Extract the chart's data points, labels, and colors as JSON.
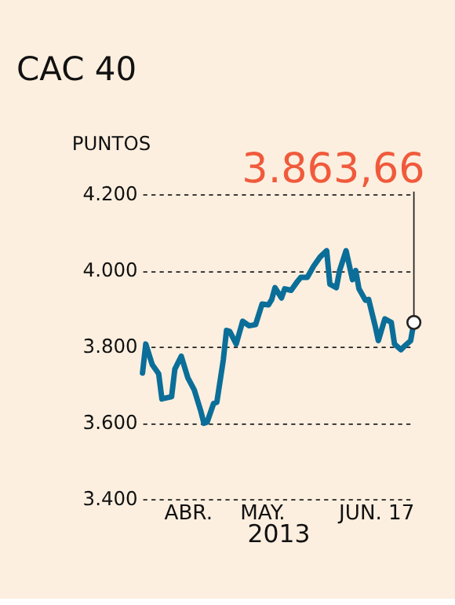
{
  "chart_data": {
    "type": "line",
    "title": "CAC 40",
    "ylabel": "PUNTOS",
    "xlabel": "2013",
    "x": [
      "2013-03-25",
      "2013-03-26",
      "2013-03-28",
      "2013-03-30",
      "2013-03-31",
      "2013-04-03",
      "2013-04-04",
      "2013-04-06",
      "2013-04-08",
      "2013-04-10",
      "2013-04-12",
      "2013-04-13",
      "2013-04-14",
      "2013-04-16",
      "2013-04-17",
      "2013-04-19",
      "2013-04-20",
      "2013-04-21",
      "2013-04-23",
      "2013-04-25",
      "2013-04-27",
      "2013-04-29",
      "2013-05-01",
      "2013-05-03",
      "2013-05-04",
      "2013-05-05",
      "2013-05-07",
      "2013-05-08",
      "2013-05-10",
      "2013-05-12",
      "2013-05-13",
      "2013-05-15",
      "2013-05-17",
      "2013-05-19",
      "2013-05-21",
      "2013-05-22",
      "2013-05-24",
      "2013-05-25",
      "2013-05-27",
      "2013-05-29",
      "2013-05-30",
      "2013-05-31",
      "2013-06-02",
      "2013-06-03",
      "2013-06-05",
      "2013-06-06",
      "2013-06-08",
      "2013-06-10",
      "2013-06-11",
      "2013-06-13",
      "2013-06-14",
      "2013-06-16",
      "2013-06-17"
    ],
    "series": [
      {
        "color": "#0b6e99",
        "values": [
          3731,
          3807,
          3753,
          3729,
          3663,
          3669,
          3741,
          3775,
          3719,
          3687,
          3632,
          3599,
          3602,
          3651,
          3654,
          3765,
          3843,
          3840,
          3807,
          3867,
          3855,
          3858,
          3912,
          3910,
          3924,
          3955,
          3928,
          3952,
          3948,
          3972,
          3982,
          3982,
          4012,
          4036,
          4052,
          3964,
          3955,
          4000,
          4052,
          3976,
          4000,
          3952,
          3922,
          3924,
          3855,
          3816,
          3873,
          3864,
          3807,
          3792,
          3801,
          3816,
          3863.66
        ]
      }
    ],
    "xlim": [
      "2013-03-25",
      "2013-06-17"
    ],
    "xticks": [
      {
        "value": "2013-04-08",
        "label": "ABR."
      },
      {
        "value": "2013-05-01",
        "label": "MAY."
      },
      {
        "value": "2013-06-17",
        "label": "JUN. 17"
      }
    ],
    "ylim": [
      3400,
      4200
    ],
    "yticks": [
      {
        "value": 3400,
        "label": "3.400"
      },
      {
        "value": 3600,
        "label": "3.600"
      },
      {
        "value": 3800,
        "label": "3.800"
      },
      {
        "value": 4000,
        "label": "4.000"
      },
      {
        "value": 4200,
        "label": "4.200"
      }
    ],
    "grid": "y",
    "marker": "none",
    "line_style": "solid",
    "annotations": [
      {
        "text": "3.863,66",
        "x": "2013-06-17",
        "y": 3863.66
      }
    ]
  }
}
